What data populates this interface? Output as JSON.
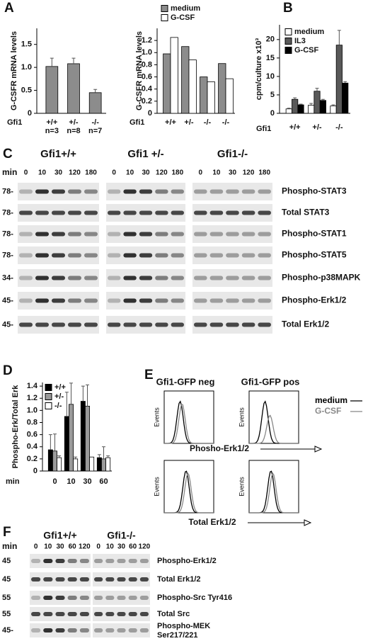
{
  "panel_labels": [
    "A",
    "B",
    "C",
    "D",
    "E",
    "F"
  ],
  "chart_data": [
    {
      "type": "bar",
      "ylabel": "G-CSFR mRNA levels",
      "row_label": "Gfi1",
      "categories": [
        "+/+",
        "+/-",
        "-/-"
      ],
      "n_labels": [
        "n=3",
        "n=8",
        "n=7"
      ],
      "values": [
        1.02,
        1.08,
        0.45
      ],
      "errors": [
        0.18,
        0.12,
        0.07
      ],
      "color": "#8c8c8c",
      "ylim": [
        0,
        1.85
      ],
      "yticks": [
        0,
        0.5,
        {
          "value": 1,
          "label": "1.0"
        },
        1.5
      ]
    },
    {
      "type": "bar",
      "ylabel": "G-CSFR mRNA levels",
      "row_label": "Gfi1",
      "categories": [
        "+/+",
        "+/-",
        "-/-",
        "-/-"
      ],
      "series": [
        {
          "name": "medium",
          "color": "#8c8c8c",
          "values": [
            0.98,
            1.1,
            0.6,
            0.82
          ]
        },
        {
          "name": "G-CSF",
          "color": "#ffffff",
          "values": [
            1.25,
            0.88,
            0.52,
            0.57
          ]
        }
      ],
      "legend": "upper left",
      "ylim": [
        0,
        1.4
      ],
      "yticks": [
        0,
        0.2,
        0.4,
        0.6,
        0.8,
        {
          "value": 1,
          "label": "1.0"
        },
        1.2
      ]
    },
    {
      "type": "bar",
      "ylabel": "cpm/culture x10³",
      "row_label": "Gfi1",
      "categories": [
        "+/+",
        "+/-",
        "-/-"
      ],
      "series": [
        {
          "name": "medium",
          "color": "#ffffff",
          "values": [
            1.2,
            2.2,
            2
          ],
          "errors": [
            0.2,
            0.5,
            0.3
          ]
        },
        {
          "name": "IL3",
          "color": "#595959",
          "values": [
            3.8,
            6,
            18.5
          ],
          "errors": [
            0.4,
            0.8,
            4
          ]
        },
        {
          "name": "G-CSF",
          "color": "#000000",
          "values": [
            2.3,
            3.5,
            8.2
          ],
          "errors": [
            0.2,
            0.3,
            0.4
          ]
        }
      ],
      "legend": "upper left",
      "ylim": [
        0,
        24
      ],
      "yticks": [
        0,
        5,
        10,
        15,
        20
      ]
    },
    {
      "type": "bar",
      "ylabel": "Phospho-Erk/Total Erk",
      "row_label": "min",
      "categories": [
        "0",
        "10",
        "30",
        "60"
      ],
      "series": [
        {
          "name": "+/+",
          "color": "#000000",
          "values": [
            0.35,
            0.9,
            1.15,
            0.22
          ],
          "errors": [
            0.25,
            0.4,
            0.25,
            0.05
          ]
        },
        {
          "name": "+/-",
          "color": "#9a9a9a",
          "values": [
            0.33,
            1.1,
            1.07,
            0.2
          ],
          "errors": [
            0.28,
            0.35,
            0.35,
            0.2
          ]
        },
        {
          "name": "-/-",
          "color": "#ffffff",
          "values": [
            0.22,
            0.2,
            0.23,
            0.22
          ],
          "errors": [
            0.03,
            0.03,
            0,
            0.03
          ]
        }
      ],
      "legend": "upper left",
      "ylim": [
        0,
        1.46
      ],
      "yticks": [
        0,
        0.2,
        0.4,
        0.6,
        0.8,
        {
          "value": 1,
          "label": "1.0"
        },
        1.2,
        1.4
      ]
    }
  ],
  "blots": [
    {
      "groups": [
        "Gfi1+/+",
        "Gfi1 +/-",
        "Gfi1-/-"
      ],
      "lane_label": "min",
      "lanes": [
        "0",
        "10",
        "30",
        "120",
        "180"
      ],
      "rows": [
        {
          "mw": "78-",
          "label": "Phospho-STAT3"
        },
        {
          "mw": "78-",
          "label": "Total STAT3"
        },
        {
          "mw": "78-",
          "label": "Phospho-STAT1"
        },
        {
          "mw": "78-",
          "label": "Phospho-STAT5"
        },
        {
          "mw": "34-",
          "label": "Phospho-p38MAPK"
        },
        {
          "mw": "45-",
          "label": "Phospho-Erk1/2"
        },
        {
          "mw": "45-",
          "label": "Total Erk1/2"
        }
      ]
    },
    {
      "groups": [
        "Gfi1+/+",
        "Gfi1-/-"
      ],
      "lane_label": "min",
      "lanes": [
        "0",
        "10",
        "30",
        "60",
        "120"
      ],
      "rows": [
        {
          "mw": "45",
          "label": "Phospho-Erk1/2"
        },
        {
          "mw": "45",
          "label": "Total Erk1/2"
        },
        {
          "mw": "55",
          "label": "Phospho-Src Tyr416"
        },
        {
          "mw": "55",
          "label": "Total Src"
        },
        {
          "mw": "45-",
          "label": "Phospho-MEK",
          "sublabel": "Ser217/221"
        }
      ]
    }
  ],
  "flow": {
    "columns": [
      "Gfi1-GFP neg",
      "Gfi1-GFP pos"
    ],
    "y_label": "Events",
    "rows": [
      "Phosho-Erk1/2",
      "Total Erk1/2"
    ],
    "legend": [
      "medium",
      "G-CSF"
    ]
  }
}
